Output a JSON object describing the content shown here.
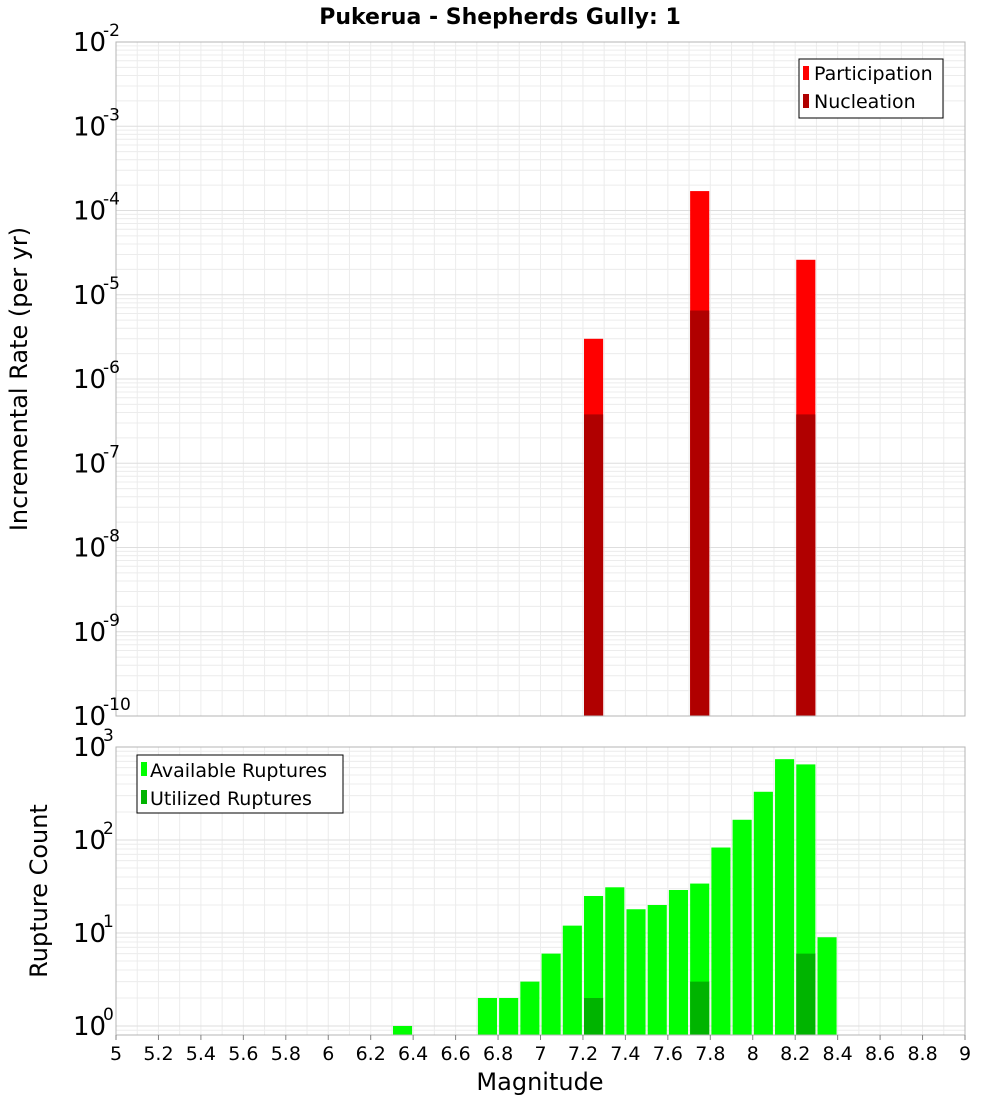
{
  "chart_data": [
    {
      "type": "bar",
      "title": "Pukerua - Shepherds Gully: 1",
      "ylabel": "Incremental Rate (per yr)",
      "yscale": "log",
      "ylim": [
        1e-10,
        0.01
      ],
      "xlim": [
        5,
        9
      ],
      "bar_width": 0.09,
      "legend_position": "top-right",
      "series": [
        {
          "name": "Participation",
          "color": "#ff0000",
          "x": [
            7.25,
            7.75,
            8.25
          ],
          "values": [
            3e-06,
            0.00017,
            2.6e-05
          ]
        },
        {
          "name": "Nucleation",
          "color": "#b00000",
          "x": [
            7.25,
            7.75,
            8.25
          ],
          "values": [
            3.8e-07,
            6.5e-06,
            3.8e-07
          ]
        }
      ],
      "yticks": [
        {
          "value": 1e-10,
          "base": "10",
          "exp": "-10"
        },
        {
          "value": 1e-09,
          "base": "10",
          "exp": "-9"
        },
        {
          "value": 1e-08,
          "base": "10",
          "exp": "-8"
        },
        {
          "value": 1e-07,
          "base": "10",
          "exp": "-7"
        },
        {
          "value": 1e-06,
          "base": "10",
          "exp": "-6"
        },
        {
          "value": 1e-05,
          "base": "10",
          "exp": "-5"
        },
        {
          "value": 0.0001,
          "base": "10",
          "exp": "-4"
        },
        {
          "value": 0.001,
          "base": "10",
          "exp": "-3"
        },
        {
          "value": 0.01,
          "base": "10",
          "exp": "-2"
        }
      ]
    },
    {
      "type": "bar",
      "ylabel": "Rupture Count",
      "xlabel": "Magnitude",
      "yscale": "log",
      "ylim": [
        0.8,
        1000
      ],
      "xlim": [
        5,
        9
      ],
      "bar_width": 0.09,
      "legend_position": "top-left",
      "series": [
        {
          "name": "Available Ruptures",
          "color": "#00ff00",
          "x": [
            6.35,
            6.75,
            6.85,
            6.95,
            7.05,
            7.15,
            7.25,
            7.35,
            7.45,
            7.55,
            7.65,
            7.75,
            7.85,
            7.95,
            8.05,
            8.15,
            8.25,
            8.35
          ],
          "values": [
            1,
            2,
            2,
            3,
            6,
            12,
            25,
            31,
            18,
            20,
            29,
            34,
            83,
            165,
            330,
            740,
            650,
            9
          ]
        },
        {
          "name": "Utilized Ruptures",
          "color": "#00b400",
          "x": [
            7.25,
            7.75,
            8.25
          ],
          "values": [
            2,
            3,
            6
          ]
        }
      ],
      "yticks": [
        {
          "value": 1,
          "base": "10",
          "exp": "0"
        },
        {
          "value": 10,
          "base": "10",
          "exp": "1"
        },
        {
          "value": 100,
          "base": "10",
          "exp": "2"
        },
        {
          "value": 1000,
          "base": "10",
          "exp": "3"
        }
      ],
      "xticks": [
        "5",
        "5.2",
        "5.4",
        "5.6",
        "5.8",
        "6",
        "6.2",
        "6.4",
        "6.6",
        "6.8",
        "7",
        "7.2",
        "7.4",
        "7.6",
        "7.8",
        "8",
        "8.2",
        "8.4",
        "8.6",
        "8.8",
        "9"
      ]
    }
  ]
}
